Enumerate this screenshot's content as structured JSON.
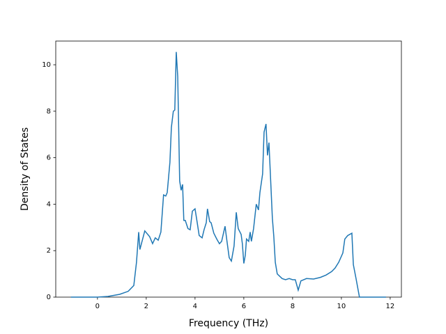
{
  "chart_data": {
    "type": "line",
    "xlabel": "Frequency (THz)",
    "ylabel": "Density of States",
    "color": "#1f77b4",
    "x": [
      -1.09,
      0,
      0.43,
      0.91,
      1.26,
      1.49,
      1.6,
      1.69,
      1.74,
      1.94,
      2.14,
      2.26,
      2.37,
      2.49,
      2.6,
      2.71,
      2.8,
      2.86,
      2.97,
      3.03,
      3.11,
      3.17,
      3.23,
      3.29,
      3.37,
      3.43,
      3.49,
      3.54,
      3.6,
      3.71,
      3.8,
      3.89,
      4.0,
      4.09,
      4.17,
      4.29,
      4.37,
      4.46,
      4.51,
      4.6,
      4.66,
      4.77,
      4.89,
      5.0,
      5.09,
      5.23,
      5.31,
      5.4,
      5.49,
      5.6,
      5.69,
      5.77,
      5.89,
      5.94,
      6.0,
      6.06,
      6.11,
      6.2,
      6.26,
      6.31,
      6.4,
      6.51,
      6.6,
      6.66,
      6.77,
      6.83,
      6.91,
      6.97,
      7.03,
      7.11,
      7.17,
      7.23,
      7.29,
      7.37,
      7.57,
      7.71,
      7.86,
      8.0,
      8.11,
      8.23,
      8.34,
      8.57,
      8.86,
      9.14,
      9.37,
      9.6,
      9.74,
      9.89,
      10.06,
      10.14,
      10.26,
      10.43,
      10.49,
      10.6,
      10.74,
      11.83
    ],
    "values": [
      0,
      0,
      0.03,
      0.12,
      0.25,
      0.5,
      1.5,
      2.8,
      2.05,
      2.85,
      2.6,
      2.3,
      2.55,
      2.45,
      2.8,
      4.4,
      4.35,
      4.5,
      5.8,
      7.3,
      8.0,
      8.05,
      10.55,
      9.5,
      5.0,
      4.6,
      4.85,
      3.3,
      3.3,
      2.95,
      2.9,
      3.7,
      3.8,
      3.2,
      2.65,
      2.55,
      2.9,
      3.2,
      3.8,
      3.25,
      3.2,
      2.75,
      2.5,
      2.3,
      2.4,
      3.05,
      2.4,
      1.7,
      1.55,
      2.2,
      3.65,
      2.95,
      2.7,
      2.3,
      1.45,
      1.8,
      2.5,
      2.4,
      2.8,
      2.4,
      2.95,
      4.0,
      3.75,
      4.5,
      5.3,
      7.1,
      7.45,
      6.1,
      6.65,
      4.8,
      3.4,
      2.6,
      1.5,
      1.0,
      0.8,
      0.75,
      0.8,
      0.75,
      0.75,
      0.3,
      0.7,
      0.8,
      0.78,
      0.85,
      0.95,
      1.1,
      1.25,
      1.5,
      1.9,
      2.5,
      2.65,
      2.75,
      1.4,
      0.8,
      0,
      0
    ],
    "xlim": [
      -1.71,
      12.46
    ],
    "ylim": [
      0,
      11.02
    ],
    "xticks": [
      0,
      2,
      4,
      6,
      8,
      10,
      12
    ],
    "yticks": [
      0,
      2,
      4,
      6,
      8,
      10
    ]
  }
}
